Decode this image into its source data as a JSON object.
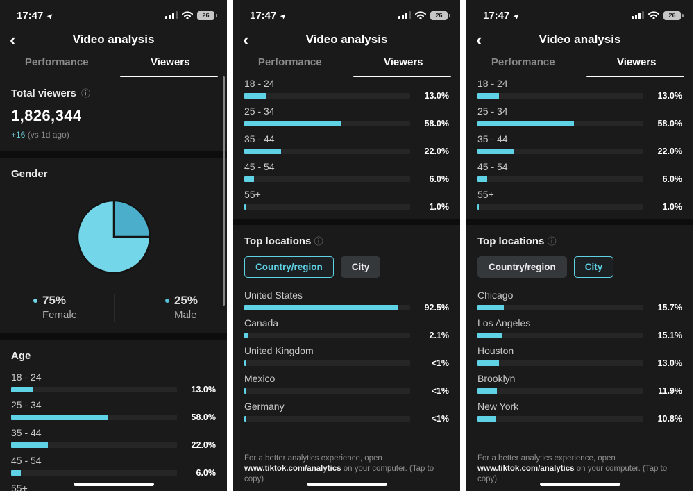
{
  "colors": {
    "accent": "#5fd2e6",
    "accent_dark": "#4bafcc",
    "panel_bg": "#1a1a1b",
    "track": "#262627"
  },
  "status": {
    "time": "17:47",
    "battery_level": "26"
  },
  "icons": {
    "back": "‹",
    "info": "ⓘ",
    "nav_arrow": "➤"
  },
  "header": {
    "title": "Video analysis"
  },
  "tabs": [
    {
      "label": "Performance"
    },
    {
      "label": "Viewers"
    }
  ],
  "summary": {
    "label": "Total viewers",
    "value": "1,826,344",
    "delta": "+16",
    "delta_note": "(vs 1d ago)"
  },
  "gender": {
    "title": "Gender",
    "legend": [
      {
        "pct": "75%",
        "name": "Female"
      },
      {
        "pct": "25%",
        "name": "Male"
      }
    ]
  },
  "age": {
    "title": "Age",
    "rows": [
      {
        "label": "18 - 24",
        "value": "13.0%",
        "pct": 13
      },
      {
        "label": "25 - 34",
        "value": "58.0%",
        "pct": 58
      },
      {
        "label": "35 - 44",
        "value": "22.0%",
        "pct": 22
      },
      {
        "label": "45 - 54",
        "value": "6.0%",
        "pct": 6
      },
      {
        "label": "55+",
        "value": "1.0%",
        "pct": 1
      }
    ]
  },
  "locations": {
    "title": "Top locations",
    "toggles": [
      {
        "label": "Country/region"
      },
      {
        "label": "City"
      }
    ],
    "countries": [
      {
        "label": "United States",
        "value": "92.5%",
        "pct": 92.5
      },
      {
        "label": "Canada",
        "value": "2.1%",
        "pct": 2.1
      },
      {
        "label": "United Kingdom",
        "value": "<1%",
        "pct": 0.9
      },
      {
        "label": "Mexico",
        "value": "<1%",
        "pct": 0.9
      },
      {
        "label": "Germany",
        "value": "<1%",
        "pct": 0.9
      }
    ],
    "cities": [
      {
        "label": "Chicago",
        "value": "15.7%",
        "pct": 15.7
      },
      {
        "label": "Los Angeles",
        "value": "15.1%",
        "pct": 15.1
      },
      {
        "label": "Houston",
        "value": "13.0%",
        "pct": 13
      },
      {
        "label": "Brooklyn",
        "value": "11.9%",
        "pct": 11.9
      },
      {
        "label": "New York",
        "value": "10.8%",
        "pct": 10.8
      }
    ]
  },
  "footer": {
    "text_before": "For a better analytics experience, open ",
    "url": "www.tiktok.com/analytics",
    "text_after": " on your computer. (Tap to copy)"
  },
  "chart_data": [
    {
      "type": "pie",
      "title": "Gender",
      "labels": [
        "Female",
        "Male"
      ],
      "values": [
        75,
        25
      ],
      "unit": "%",
      "colors": [
        "#73d7e9",
        "#4bafcc"
      ]
    },
    {
      "type": "bar",
      "title": "Age",
      "orientation": "horizontal",
      "categories": [
        "18 - 24",
        "25 - 34",
        "35 - 44",
        "45 - 54",
        "55+"
      ],
      "values": [
        13.0,
        58.0,
        22.0,
        6.0,
        1.0
      ],
      "unit": "%",
      "xlim": [
        0,
        100
      ]
    },
    {
      "type": "bar",
      "title": "Top locations — Country/region",
      "orientation": "horizontal",
      "categories": [
        "United States",
        "Canada",
        "United Kingdom",
        "Mexico",
        "Germany"
      ],
      "values": [
        92.5,
        2.1,
        "<1",
        "<1",
        "<1"
      ],
      "unit": "%",
      "xlim": [
        0,
        100
      ]
    },
    {
      "type": "bar",
      "title": "Top locations — City",
      "orientation": "horizontal",
      "categories": [
        "Chicago",
        "Los Angeles",
        "Houston",
        "Brooklyn",
        "New York"
      ],
      "values": [
        15.7,
        15.1,
        13.0,
        11.9,
        10.8
      ],
      "unit": "%",
      "xlim": [
        0,
        100
      ]
    },
    {
      "type": "table",
      "title": "Total viewers",
      "rows": [
        [
          "Total viewers",
          "1,826,344",
          "+16 (vs 1d ago)"
        ]
      ]
    }
  ]
}
